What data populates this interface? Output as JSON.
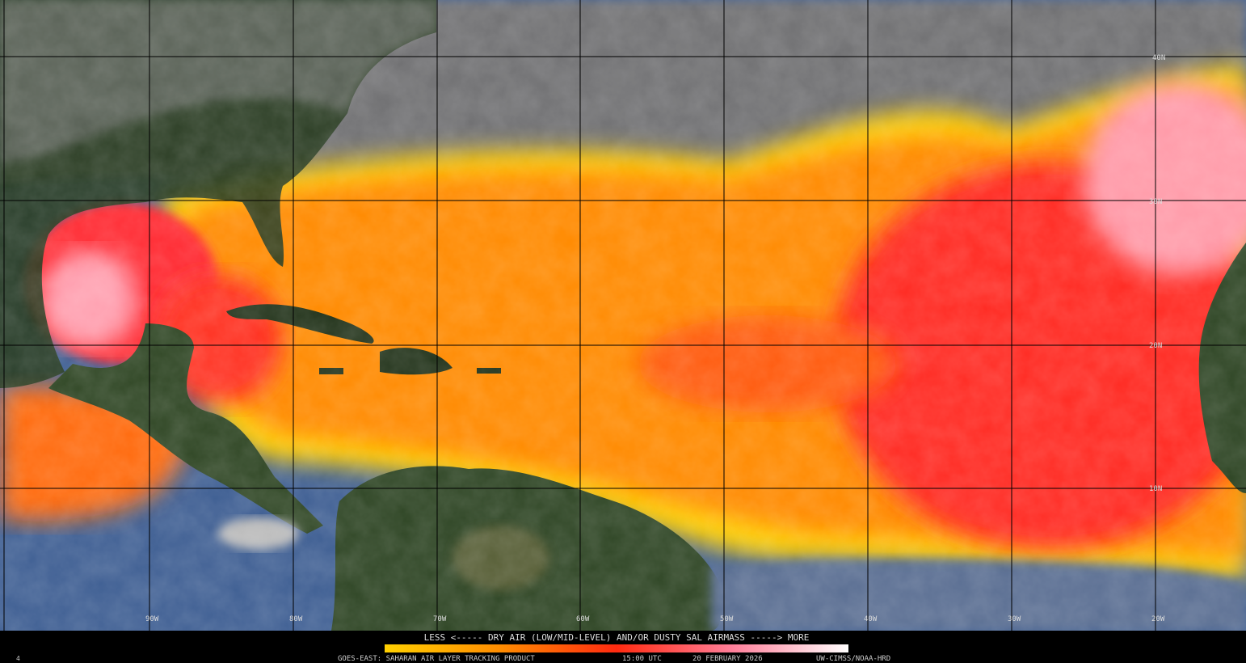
{
  "map": {
    "lat_labels": [
      "40N",
      "30N",
      "20N",
      "10N"
    ],
    "lon_labels": [
      "90W",
      "80W",
      "70W",
      "60W",
      "50W",
      "40W",
      "30W",
      "20W"
    ]
  },
  "legend": {
    "text": "LESS <----- DRY AIR (LOW/MID-LEVEL) AND/OR DUSTY SAL AIRMASS -----> MORE"
  },
  "footer": {
    "product": "GOES-EAST: SAHARAN AIR LAYER TRACKING PRODUCT",
    "time": "15:00 UTC",
    "date": "20 FEBRUARY 2026",
    "credit": "UW-CIMSS/NOAA-HRD"
  },
  "corner_label": "4"
}
